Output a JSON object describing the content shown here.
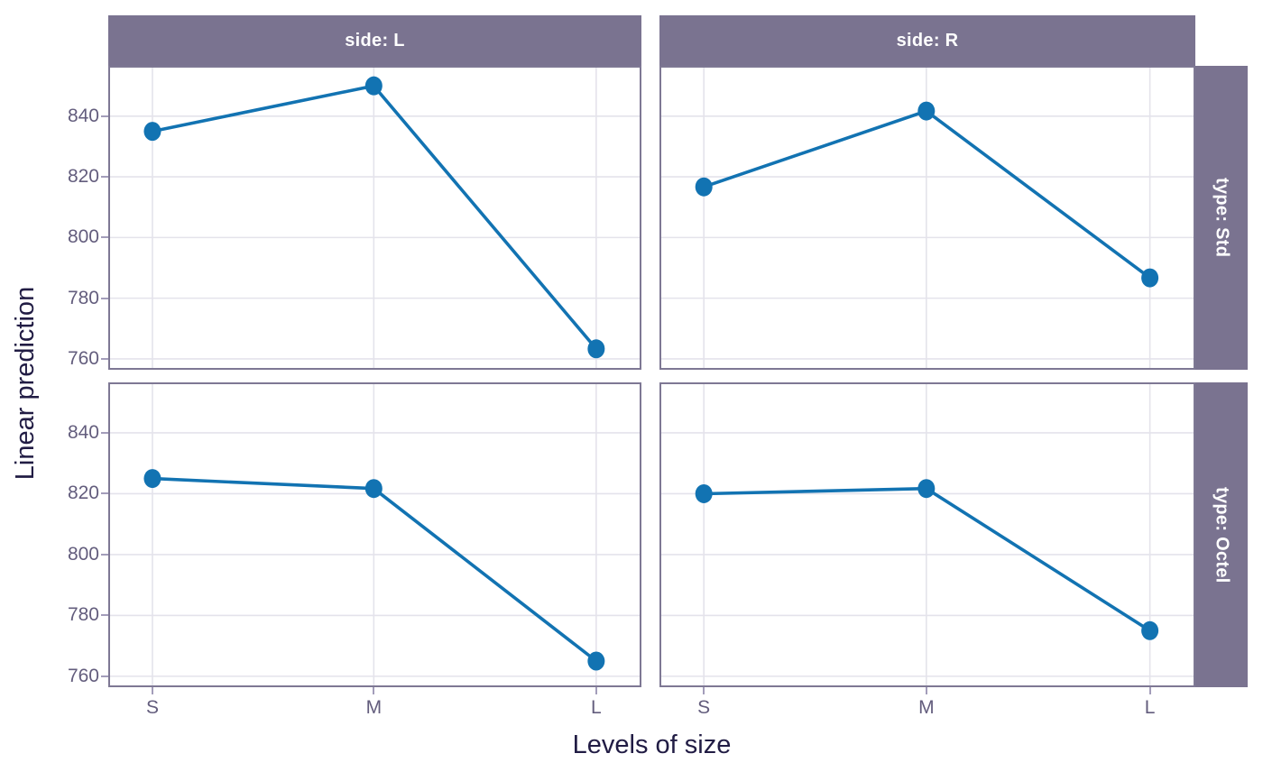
{
  "chart_data": {
    "type": "line",
    "title": "",
    "xlabel": "Levels of size",
    "ylabel": "Linear prediction",
    "categories": [
      "S",
      "M",
      "L"
    ],
    "yticks": [
      760,
      780,
      800,
      820,
      840
    ],
    "ylim": [
      757,
      856
    ],
    "grid": true,
    "legend_position": "none",
    "facet_cols": [
      "side: L",
      "side: R"
    ],
    "facet_rows": [
      "type: Std",
      "type: Octel"
    ],
    "panels": [
      {
        "col": "side: L",
        "row": "type: Std",
        "values": [
          835.0,
          850.0,
          763.3
        ]
      },
      {
        "col": "side: R",
        "row": "type: Std",
        "values": [
          816.7,
          841.7,
          786.7
        ]
      },
      {
        "col": "side: L",
        "row": "type: Octel",
        "values": [
          825.0,
          821.7,
          765.0
        ]
      },
      {
        "col": "side: R",
        "row": "type: Octel",
        "values": [
          820.0,
          821.7,
          775.0
        ]
      }
    ],
    "colors": {
      "series": "#1273b2",
      "strip_bg": "#7a7390",
      "strip_text": "#ffffff",
      "panel_border": "#7e7894",
      "gridline": "#e4e3eb",
      "tick_text": "#635d7d",
      "axis_title_text": "#211c44",
      "background": "#ffffff"
    }
  }
}
